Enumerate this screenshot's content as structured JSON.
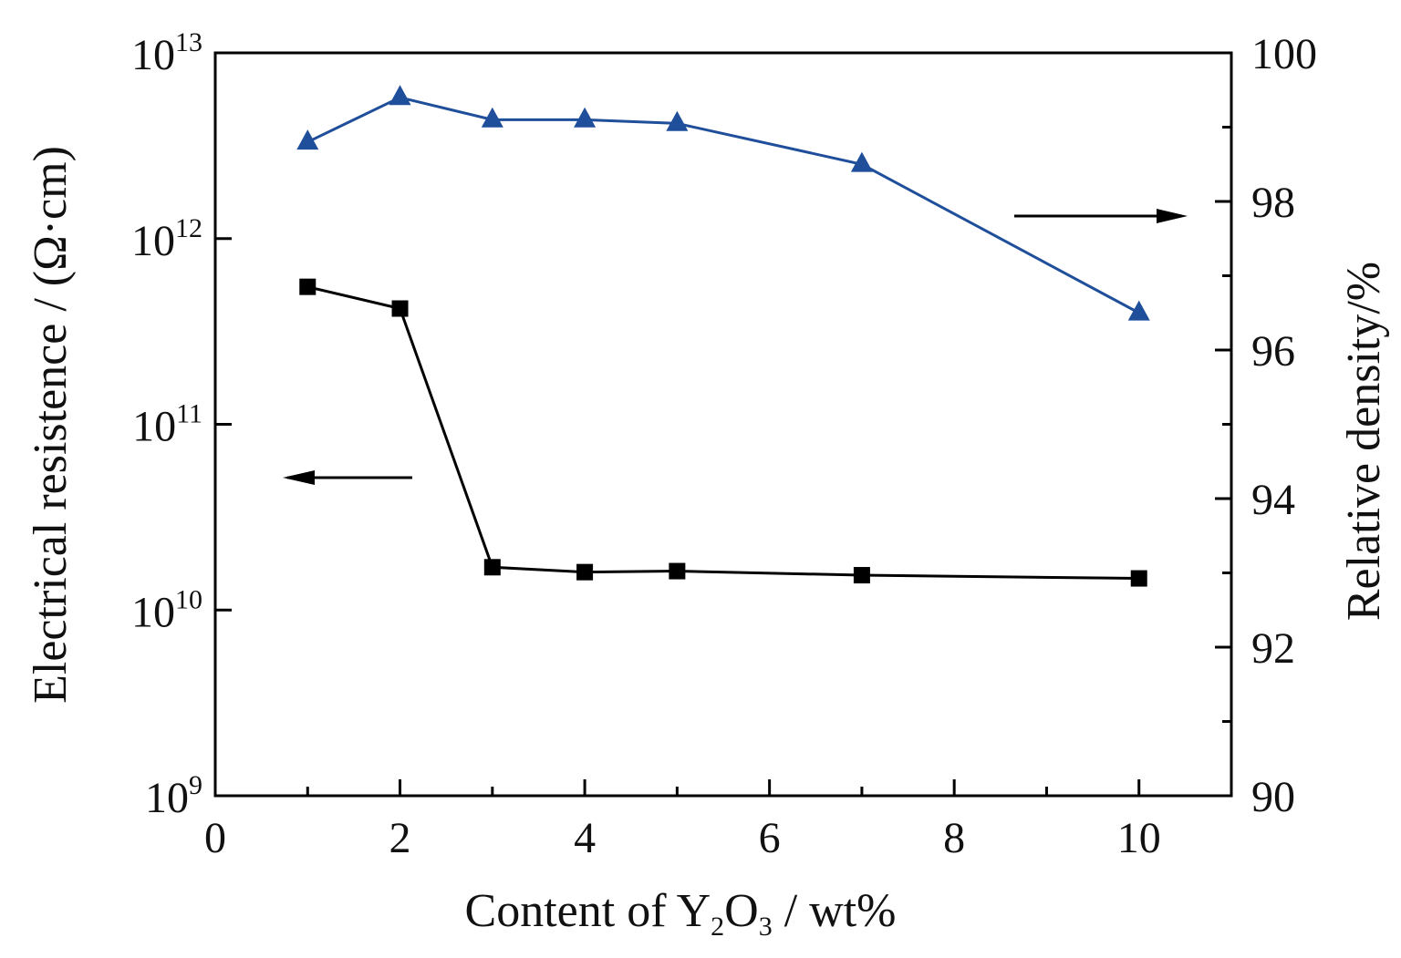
{
  "chart_data": {
    "type": "line",
    "xlabel": {
      "prefix": "Content of  Y",
      "sub1": "2",
      "mid": "O",
      "sub2": "3",
      "suffix": " / wt%"
    },
    "ylabel_left": "Electrical resistence / (Ω·cm)",
    "ylabel_right": "Relative density/%",
    "x_ticks": [
      0,
      2,
      4,
      6,
      8,
      10
    ],
    "x_tick_labels": [
      "0",
      "2",
      "4",
      "6",
      "8",
      "10"
    ],
    "xlim": [
      0,
      11
    ],
    "y_left": {
      "scale": "log",
      "lim_exp": [
        9,
        13
      ],
      "tick_base": "10",
      "tick_exps": [
        "9",
        "10",
        "11",
        "12",
        "13"
      ]
    },
    "y_right": {
      "lim": [
        90,
        100
      ],
      "ticks": [
        90,
        92,
        94,
        96,
        98,
        100
      ],
      "tick_labels": [
        "90",
        "92",
        "94",
        "96",
        "98",
        "100"
      ]
    },
    "series": [
      {
        "axis": "left",
        "marker": "square",
        "color": "#000000",
        "x": [
          1,
          2,
          3,
          4,
          5,
          7,
          10
        ],
        "y": [
          550000000000.0,
          420000000000.0,
          17000000000.0,
          16000000000.0,
          16200000000.0,
          15400000000.0,
          14800000000.0
        ]
      },
      {
        "axis": "right",
        "marker": "triangle",
        "color": "#1f4e9a",
        "x": [
          1,
          2,
          3,
          4,
          5,
          7,
          10
        ],
        "y": [
          98.8,
          99.4,
          99.1,
          99.1,
          99.05,
          98.5,
          96.5
        ]
      }
    ],
    "annotations": [
      {
        "type": "arrow",
        "direction": "left",
        "points_to": "left axis"
      },
      {
        "type": "arrow",
        "direction": "right",
        "points_to": "right axis"
      }
    ],
    "grid": false,
    "legend": "none"
  }
}
